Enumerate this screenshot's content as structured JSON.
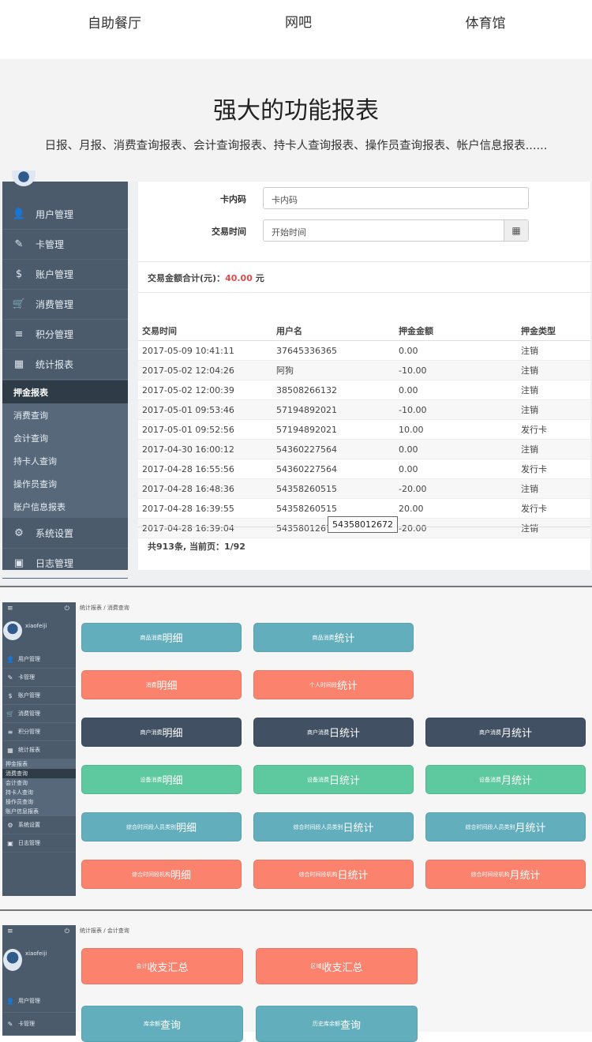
{
  "top_tabs": [
    "自助餐厅",
    "网吧",
    "体育馆"
  ],
  "hero": {
    "title": "强大的功能报表",
    "subtitle": "日报、月报、消费查询报表、会计查询报表、持卡人查询报表、操作员查询报表、帐户信息报表......"
  },
  "sidebar": {
    "items": [
      {
        "label": "用户管理",
        "icon": "user-icon",
        "g": "👤"
      },
      {
        "label": "卡管理",
        "icon": "card-icon",
        "g": "✎"
      },
      {
        "label": "账户管理",
        "icon": "dollar-icon",
        "g": "$"
      },
      {
        "label": "消费管理",
        "icon": "cart-icon",
        "g": "🛒"
      },
      {
        "label": "积分管理",
        "icon": "database-icon",
        "g": "≡"
      },
      {
        "label": "统计报表",
        "icon": "table-icon",
        "g": "▦"
      }
    ],
    "sub": [
      "押金报表",
      "消费查询",
      "会计查询",
      "持卡人查询",
      "操作员查询",
      "账户信息报表"
    ],
    "bottom": [
      {
        "label": "系统设置",
        "icon": "gear-icon",
        "g": "⚙"
      },
      {
        "label": "日志管理",
        "icon": "log-icon",
        "g": "▣"
      }
    ],
    "username": "xiaofeiji"
  },
  "form": {
    "card_label": "卡内码",
    "card_placeholder": "卡内码",
    "time_label": "交易时间",
    "time_placeholder": "开始时间"
  },
  "total": {
    "label": "交易金额合计(元)：",
    "value": "40.00",
    "unit": "元"
  },
  "table": {
    "headers": [
      "交易时间",
      "用户名",
      "押金金额",
      "押金类型"
    ],
    "rows": [
      [
        "2017-05-09 10:41:11",
        "37645336365",
        "0.00",
        "注销"
      ],
      [
        "2017-05-02 12:04:26",
        "阿狗",
        "-10.00",
        "注销"
      ],
      [
        "2017-05-02 12:00:39",
        "38508266132",
        "0.00",
        "注销"
      ],
      [
        "2017-05-01 09:53:46",
        "57194892021",
        "-10.00",
        "注销"
      ],
      [
        "2017-05-01 09:52:56",
        "57194892021",
        "10.00",
        "发行卡"
      ],
      [
        "2017-04-30 16:00:12",
        "54360227564",
        "0.00",
        "注销"
      ],
      [
        "2017-04-28 16:55:56",
        "54360227564",
        "0.00",
        "发行卡"
      ],
      [
        "2017-04-28 16:48:36",
        "54358260515",
        "-20.00",
        "注销"
      ],
      [
        "2017-04-28 16:39:55",
        "54358260515",
        "20.00",
        "发行卡"
      ],
      [
        "2017-04-28 16:39:04",
        "54358012672",
        "-20.00",
        "注销"
      ]
    ],
    "footer": "共913条, 当前页：1/92",
    "tooltip": "54358012672"
  },
  "colors": {
    "teal": "#62aebd",
    "coral": "#fb826c",
    "navy": "#425063",
    "green": "#5ec89e"
  },
  "panel2": {
    "breadcrumb": [
      "统计报表",
      "消费查询"
    ],
    "buttons": [
      [
        {
          "s": "商品消费",
          "b": "明细",
          "c": "teal"
        },
        {
          "s": "商品消费",
          "b": "统计",
          "c": "teal"
        }
      ],
      [
        {
          "s": "消费",
          "b": "明细",
          "c": "coral"
        },
        {
          "s": "个人时间段",
          "b": "统计",
          "c": "coral"
        }
      ],
      [
        {
          "s": "商户消费",
          "b": "明细",
          "c": "navy"
        },
        {
          "s": "商户消费",
          "b": "日统计",
          "c": "navy"
        },
        {
          "s": "商户消费",
          "b": "月统计",
          "c": "navy"
        }
      ],
      [
        {
          "s": "设备消费",
          "b": "明细",
          "c": "green"
        },
        {
          "s": "设备消费",
          "b": "日统计",
          "c": "green"
        },
        {
          "s": "设备消费",
          "b": "月统计",
          "c": "green"
        }
      ],
      [
        {
          "s": "综合时间段人员类别",
          "b": "明细",
          "c": "teal"
        },
        {
          "s": "综合时间段人员类别",
          "b": "日统计",
          "c": "teal"
        },
        {
          "s": "综合时间段人员类别",
          "b": "月统计",
          "c": "teal"
        }
      ],
      [
        {
          "s": "综合时间段机构",
          "b": "明细",
          "c": "coral"
        },
        {
          "s": "综合时间段机构",
          "b": "日统计",
          "c": "coral"
        },
        {
          "s": "综合时间段机构",
          "b": "月统计",
          "c": "coral"
        }
      ]
    ]
  },
  "panel3": {
    "breadcrumb": [
      "统计报表",
      "会计查询"
    ],
    "buttons": [
      [
        {
          "s": "会计",
          "b": "收支汇总",
          "c": "coral"
        },
        {
          "s": "区域",
          "b": "收支汇总",
          "c": "coral"
        }
      ],
      [
        {
          "s": "库余额",
          "b": "查询",
          "c": "teal"
        },
        {
          "s": "历史库余额",
          "b": "查询",
          "c": "teal"
        }
      ]
    ]
  }
}
